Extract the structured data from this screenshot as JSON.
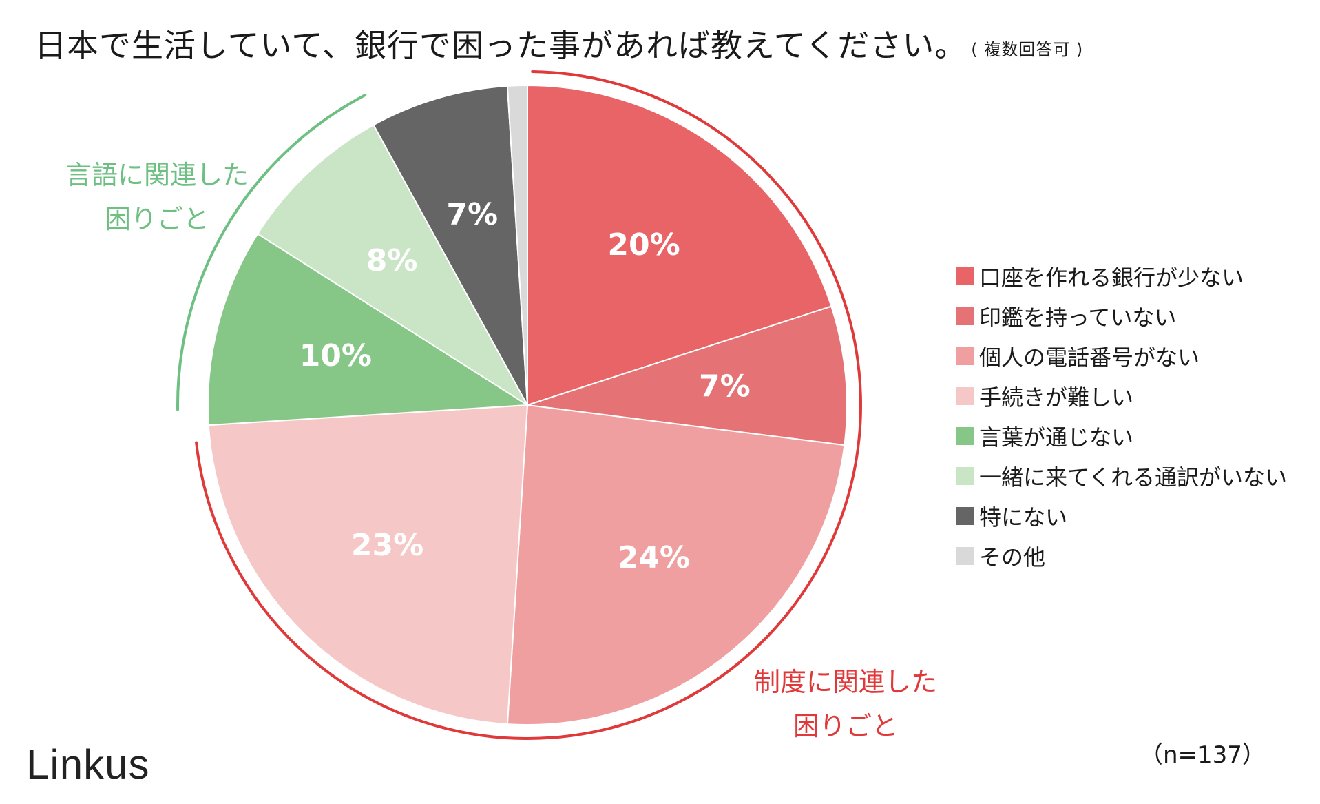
{
  "title": "日本で生活していて、銀行で困った事があれば教えてください。",
  "subtitle": "( 複数回答可 )",
  "sample_size": "（n=137）",
  "logo_text": "Linkus",
  "chart_data": {
    "type": "pie",
    "slices": [
      {
        "label": "口座を作れる銀行が少ない",
        "value": 20,
        "display": "20%",
        "color": "#e96466"
      },
      {
        "label": "印鑑を持っていない",
        "value": 7,
        "display": "7%",
        "color": "#e57275"
      },
      {
        "label": "個人の電話番号がない",
        "value": 24,
        "display": "24%",
        "color": "#f09fa0"
      },
      {
        "label": "手続きが難しい",
        "value": 23,
        "display": "23%",
        "color": "#f6c7c7"
      },
      {
        "label": "言葉が通じない",
        "value": 10,
        "display": "10%",
        "color": "#86c687"
      },
      {
        "label": "一緒に来てくれる通訳がいない",
        "value": 8,
        "display": "8%",
        "color": "#cae4c6"
      },
      {
        "label": "特にない",
        "value": 7,
        "display": "7%",
        "color": "#656565"
      },
      {
        "label": "その他",
        "value": 1,
        "display": "",
        "color": "#d9d9d9"
      }
    ],
    "legend_position": "right",
    "groups": [
      {
        "label_line1": "制度に関連した",
        "label_line2": "困りごと",
        "color": "#e0393a"
      },
      {
        "label_line1": "言語に関連した",
        "label_line2": "困りごと",
        "color": "#6dbf82"
      }
    ]
  }
}
